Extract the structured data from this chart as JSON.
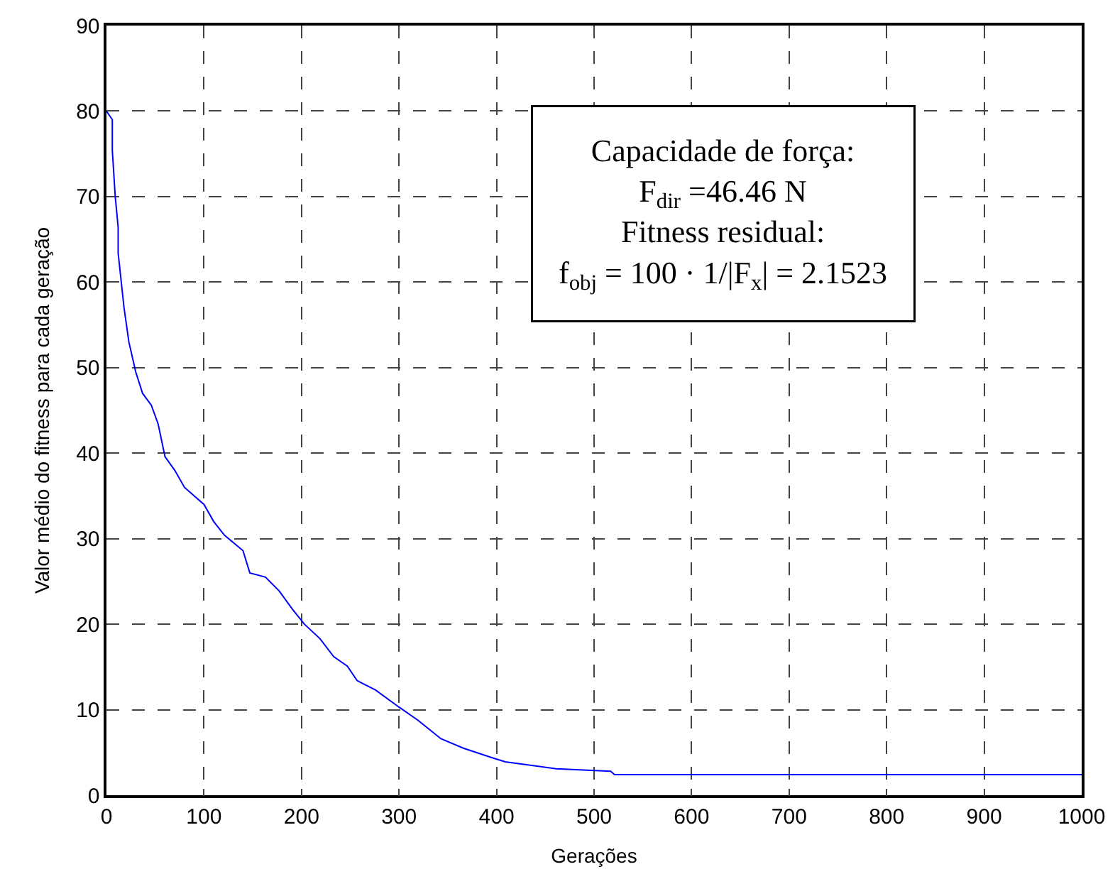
{
  "chart_data": {
    "type": "line",
    "xlabel": "Gerações",
    "ylabel": "Valor médio do fitness para cada geração",
    "x": [
      0,
      6,
      6,
      9,
      12,
      12,
      18,
      23,
      30,
      37,
      46,
      53,
      60,
      70,
      80,
      90,
      100,
      110,
      121,
      140,
      147,
      163,
      177,
      191,
      203,
      219,
      233,
      247,
      257,
      276,
      300,
      319,
      343,
      366,
      395,
      409,
      461,
      517,
      521,
      1000
    ],
    "series": [
      {
        "color": "#0000ff",
        "values": [
          80,
          79,
          75.4,
          70,
          66.4,
          63.4,
          57,
          53,
          49.5,
          47,
          45.6,
          43.4,
          39.6,
          38,
          36,
          35,
          34,
          32,
          30.4,
          28.6,
          26,
          25.5,
          23.9,
          21.7,
          20,
          18.3,
          16.2,
          15.1,
          13.4,
          12.3,
          10.3,
          8.8,
          6.6,
          5.5,
          4.4,
          3.9,
          3.1,
          2.8,
          2.4,
          2.4
        ]
      }
    ],
    "xlim": [
      0,
      1000
    ],
    "ylim": [
      0,
      90
    ],
    "xticks": [
      0,
      100,
      200,
      300,
      400,
      500,
      600,
      700,
      800,
      900,
      1000
    ],
    "yticks": [
      0,
      10,
      20,
      30,
      40,
      50,
      60,
      70,
      80,
      90
    ],
    "grid": true,
    "line_style": "solid",
    "marker": "none",
    "annotations": [
      "Capacidade de força:",
      "F$_{dir}$ =46.46 N",
      "Fitness residual:",
      "f$_{obj}$ = 100 · 1/|F$_{x}$| = 2.1523"
    ]
  }
}
